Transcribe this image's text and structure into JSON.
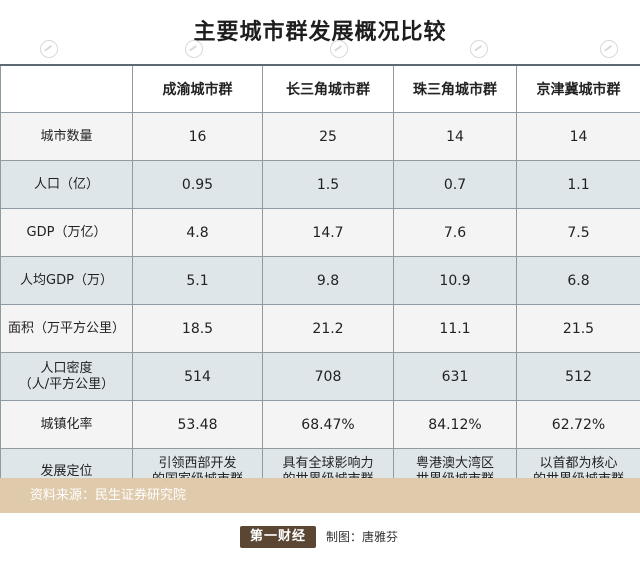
{
  "title": "主要城市群发展概况比较",
  "table": {
    "headers": [
      "",
      "成渝城市群",
      "长三角城市群",
      "珠三角城市群",
      "京津冀城市群"
    ],
    "rows": [
      {
        "label": "城市数量",
        "values": [
          "16",
          "25",
          "14",
          "14"
        ]
      },
      {
        "label": "人口（亿）",
        "values": [
          "0.95",
          "1.5",
          "0.7",
          "1.1"
        ]
      },
      {
        "label": "GDP（万亿）",
        "values": [
          "4.8",
          "14.7",
          "7.6",
          "7.5"
        ]
      },
      {
        "label": "人均GDP（万）",
        "values": [
          "5.1",
          "9.8",
          "10.9",
          "6.8"
        ]
      },
      {
        "label": "面积（万平方公里）",
        "values": [
          "18.5",
          "21.2",
          "11.1",
          "21.5"
        ]
      },
      {
        "label": "人口密度\n（人/平方公里）",
        "values": [
          "514",
          "708",
          "631",
          "512"
        ]
      },
      {
        "label": "城镇化率",
        "values": [
          "53.48",
          "68.47%",
          "84.12%",
          "62.72%"
        ]
      },
      {
        "label": "发展定位",
        "values": [
          "引领西部开发\n的国家级城市群",
          "具有全球影响力\n的世界级城市群",
          "粤港澳大湾区\n世界级城市群",
          "以首都为核心\n的世界级城市群"
        ]
      }
    ]
  },
  "source": "资料来源：民生证券研究院",
  "logo_text": "第一财经",
  "credit": "制图：唐雅芬",
  "colors": {
    "row_light": "#f4f4f4",
    "row_dark": "#dfe6ea",
    "border": "#8f9ba3",
    "source_bar": "#dfcbac",
    "logo_bg": "#5a4632"
  }
}
